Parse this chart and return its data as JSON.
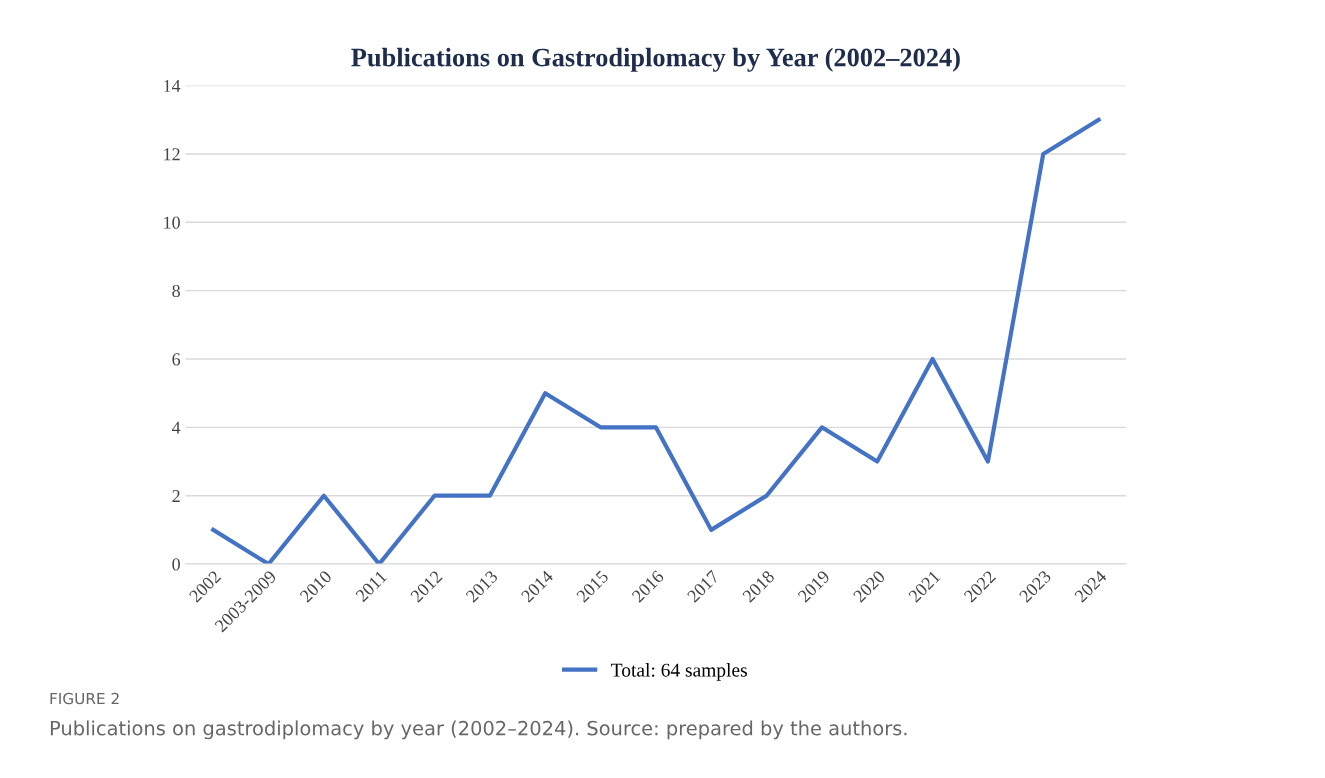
{
  "chart_data": {
    "type": "line",
    "title": "Publications on Gastrodiplomacy by Year (2002–2024)",
    "categories": [
      "2002",
      "2003-2009",
      "2010",
      "2011",
      "2012",
      "2013",
      "2014",
      "2015",
      "2016",
      "2017",
      "2018",
      "2019",
      "2020",
      "2021",
      "2022",
      "2023",
      "2024"
    ],
    "series": [
      {
        "name": "Total: 64 samples",
        "color": "#4472c4",
        "values": [
          1,
          0,
          2,
          0,
          2,
          2,
          5,
          4,
          4,
          1,
          2,
          4,
          3,
          6,
          3,
          12,
          13
        ]
      }
    ],
    "ylim": [
      0,
      14
    ],
    "yticks": [
      0,
      2,
      4,
      6,
      8,
      10,
      12,
      14
    ],
    "grid": "y",
    "legend": "bottom",
    "marker": "none",
    "line_style": "solid",
    "annotations": [
      "FIGURE 2",
      "Publications on gastrodiplomacy by year (2002–2024). Source: prepared by the authors."
    ]
  }
}
